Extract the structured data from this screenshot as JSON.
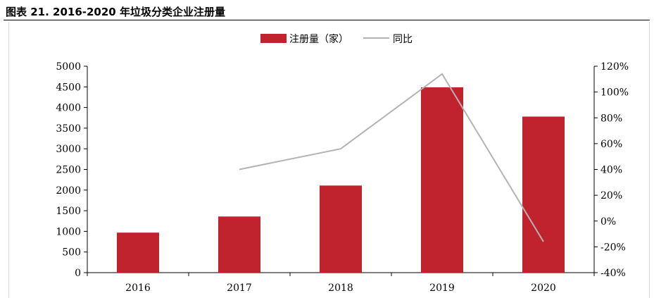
{
  "figure": {
    "title": "图表 21. 2016-2020 年垃圾分类企业注册量"
  },
  "chart_data": {
    "type": "bar",
    "categories": [
      "2016",
      "2017",
      "2018",
      "2019",
      "2020"
    ],
    "series": [
      {
        "name": "注册量（家）",
        "type": "bar",
        "axis": "left",
        "values": [
          970,
          1360,
          2110,
          4490,
          3780
        ],
        "color": "#c0232d"
      },
      {
        "name": "同比",
        "type": "line",
        "axis": "right",
        "values": [
          null,
          40,
          56,
          114,
          -16
        ],
        "color": "#b3b3b3"
      }
    ],
    "y_left": {
      "ylim": [
        0,
        5000
      ],
      "ticks": [
        "0",
        "500",
        "1000",
        "1500",
        "2000",
        "2500",
        "3000",
        "3500",
        "4000",
        "4500",
        "5000"
      ]
    },
    "y_right": {
      "ylim": [
        -40,
        120
      ],
      "ticks": [
        "-40%",
        "-20%",
        "0%",
        "20%",
        "40%",
        "60%",
        "80%",
        "100%",
        "120%"
      ]
    },
    "grid": false,
    "legend": "top-center"
  }
}
